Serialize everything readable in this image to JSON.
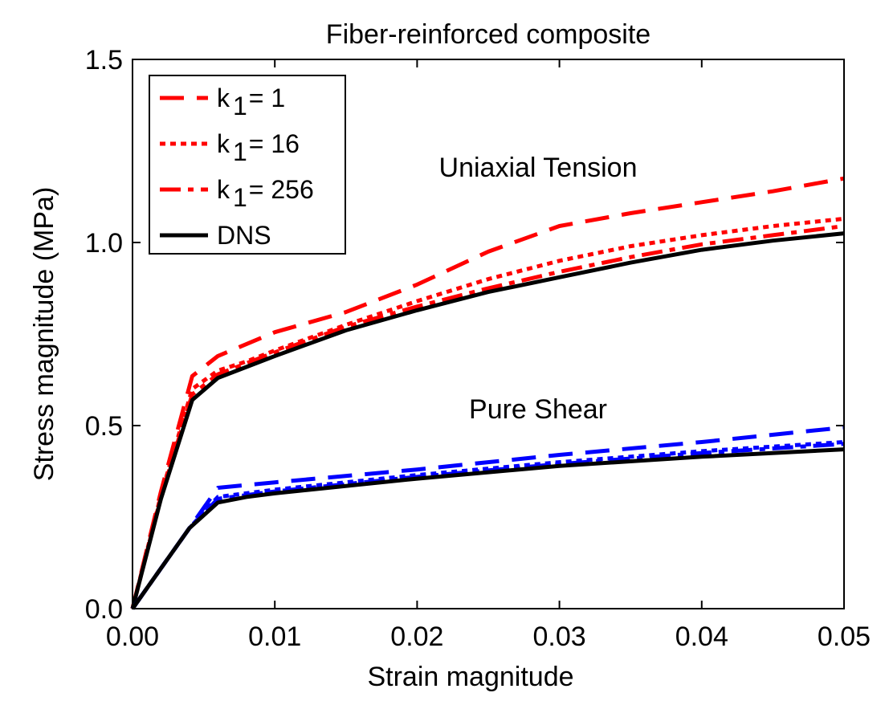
{
  "chart_data": {
    "type": "line",
    "title": "Fiber-reinforced composite",
    "xlabel": "Strain magnitude",
    "ylabel": "Stress magnitude (MPa)",
    "xlim": [
      0,
      0.05
    ],
    "ylim": [
      0,
      1.5
    ],
    "xticks": [
      0,
      0.01,
      0.02,
      0.03,
      0.04,
      0.05
    ],
    "xtick_labels": [
      "0.00",
      "0.01",
      "0.02",
      "0.03",
      "0.04",
      "0.05"
    ],
    "yticks": [
      0,
      0.5,
      1.0,
      1.5
    ],
    "ytick_labels": [
      "0.0",
      "0.5",
      "1.0",
      "1.5"
    ],
    "grid": false,
    "legend": {
      "placement": "top-left",
      "entries": [
        {
          "prefix": "k",
          "sub": "1",
          "suffix": "= 1",
          "style": "dashed",
          "color": "#ff0000"
        },
        {
          "prefix": "k",
          "sub": "1",
          "suffix": "= 16",
          "style": "dotted",
          "color": "#ff0000"
        },
        {
          "prefix": "k",
          "sub": "1",
          "suffix": "= 256",
          "style": "dashdot",
          "color": "#ff0000"
        },
        {
          "prefix": "DNS",
          "sub": "",
          "suffix": "",
          "style": "solid",
          "color": "#000000"
        }
      ]
    },
    "annotations": [
      {
        "text": "Uniaxial Tension",
        "x": 0.0285,
        "y": 1.18
      },
      {
        "text": "Pure Shear",
        "x": 0.0285,
        "y": 0.52
      }
    ],
    "series": [
      {
        "group": "Uniaxial Tension",
        "legend_index": 0,
        "style": "dashed",
        "color": "#ff0000",
        "x": [
          0,
          0.002,
          0.0042,
          0.006,
          0.01,
          0.015,
          0.02,
          0.025,
          0.03,
          0.035,
          0.04,
          0.045,
          0.05
        ],
        "y": [
          0,
          0.32,
          0.635,
          0.69,
          0.755,
          0.81,
          0.885,
          0.975,
          1.045,
          1.08,
          1.11,
          1.14,
          1.175
        ]
      },
      {
        "group": "Uniaxial Tension",
        "legend_index": 1,
        "style": "dotted",
        "color": "#ff0000",
        "x": [
          0,
          0.002,
          0.0042,
          0.006,
          0.008,
          0.01,
          0.015,
          0.02,
          0.025,
          0.03,
          0.035,
          0.04,
          0.045,
          0.05
        ],
        "y": [
          0,
          0.31,
          0.6,
          0.65,
          0.675,
          0.705,
          0.775,
          0.84,
          0.9,
          0.95,
          0.99,
          1.02,
          1.045,
          1.065
        ]
      },
      {
        "group": "Uniaxial Tension",
        "legend_index": 2,
        "style": "dashdot",
        "color": "#ff0000",
        "x": [
          0,
          0.002,
          0.0042,
          0.006,
          0.008,
          0.01,
          0.015,
          0.02,
          0.025,
          0.03,
          0.035,
          0.04,
          0.045,
          0.05
        ],
        "y": [
          0,
          0.305,
          0.585,
          0.64,
          0.67,
          0.7,
          0.77,
          0.825,
          0.875,
          0.92,
          0.96,
          0.995,
          1.02,
          1.045
        ]
      },
      {
        "group": "Uniaxial Tension",
        "legend_index": 3,
        "style": "solid",
        "color": "#000000",
        "x": [
          0,
          0.002,
          0.0042,
          0.006,
          0.008,
          0.01,
          0.015,
          0.02,
          0.025,
          0.03,
          0.035,
          0.04,
          0.045,
          0.05
        ],
        "y": [
          0,
          0.3,
          0.57,
          0.63,
          0.66,
          0.69,
          0.76,
          0.815,
          0.865,
          0.905,
          0.945,
          0.98,
          1.005,
          1.025
        ]
      },
      {
        "group": "Pure Shear",
        "legend_index": 0,
        "style": "dashed",
        "color": "#0000ff",
        "x": [
          0,
          0.002,
          0.004,
          0.006,
          0.01,
          0.02,
          0.03,
          0.04,
          0.05
        ],
        "y": [
          0,
          0.11,
          0.22,
          0.33,
          0.345,
          0.38,
          0.42,
          0.455,
          0.495
        ]
      },
      {
        "group": "Pure Shear",
        "legend_index": 1,
        "style": "dotted",
        "color": "#0000ff",
        "x": [
          0,
          0.002,
          0.004,
          0.006,
          0.01,
          0.02,
          0.03,
          0.04,
          0.05
        ],
        "y": [
          0,
          0.11,
          0.22,
          0.305,
          0.325,
          0.365,
          0.4,
          0.43,
          0.455
        ]
      },
      {
        "group": "Pure Shear",
        "legend_index": 2,
        "style": "dashdot",
        "color": "#0000ff",
        "x": [
          0,
          0.002,
          0.004,
          0.006,
          0.01,
          0.02,
          0.03,
          0.04,
          0.05
        ],
        "y": [
          0,
          0.11,
          0.22,
          0.3,
          0.32,
          0.36,
          0.395,
          0.425,
          0.45
        ]
      },
      {
        "group": "Pure Shear",
        "legend_index": 3,
        "style": "solid",
        "color": "#000000",
        "x": [
          0,
          0.002,
          0.004,
          0.006,
          0.008,
          0.01,
          0.02,
          0.03,
          0.04,
          0.05
        ],
        "y": [
          0,
          0.11,
          0.22,
          0.29,
          0.305,
          0.315,
          0.355,
          0.39,
          0.415,
          0.435
        ]
      }
    ]
  }
}
